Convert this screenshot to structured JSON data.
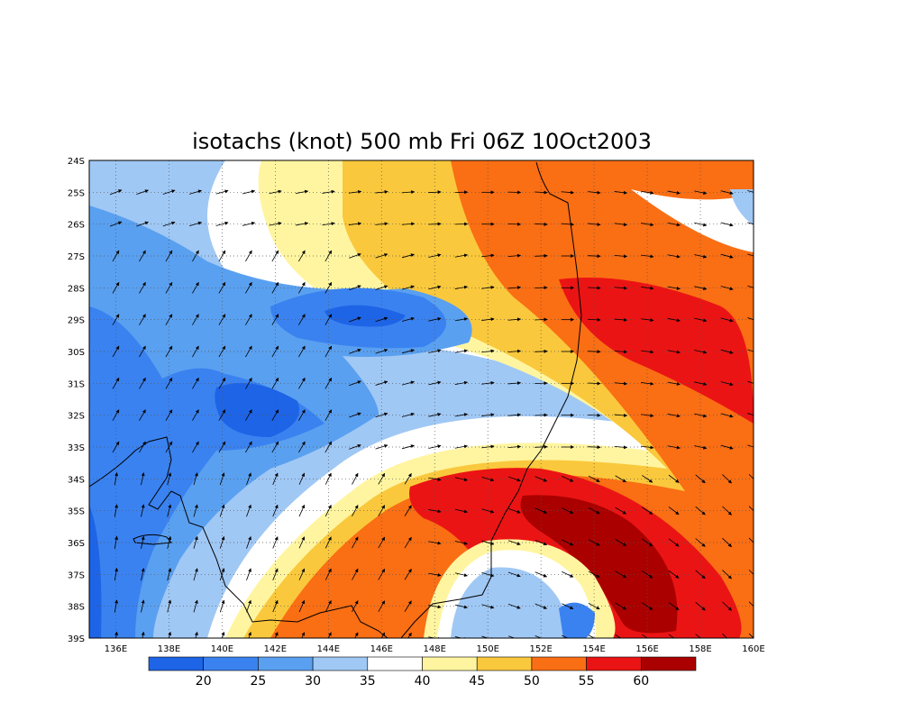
{
  "title": "isotachs (knot) 500 mb Fri 06Z 10Oct2003",
  "map": {
    "lat_labels": [
      "24S",
      "25S",
      "26S",
      "27S",
      "28S",
      "29S",
      "30S",
      "31S",
      "32S",
      "33S",
      "34S",
      "35S",
      "36S",
      "37S",
      "38S",
      "39S"
    ],
    "lon_labels": [
      "136E",
      "138E",
      "140E",
      "142E",
      "144E",
      "146E",
      "148E",
      "150E",
      "152E",
      "154E",
      "156E",
      "158E",
      "160E"
    ],
    "lon_range": [
      135,
      160
    ],
    "lat_range": [
      24,
      39
    ],
    "grid": "dotted",
    "wind_vectors": true,
    "coastline": "eastern Australia"
  },
  "colorbar": {
    "labels": [
      "20",
      "25",
      "30",
      "35",
      "40",
      "45",
      "50",
      "55",
      "60"
    ],
    "colors": [
      "#1e64e6",
      "#3a82f0",
      "#5aa0f0",
      "#a0c8f5",
      "#ffffff",
      "#fff5a0",
      "#fac83c",
      "#fa6e14",
      "#eb1414",
      "#aa0000"
    ]
  }
}
